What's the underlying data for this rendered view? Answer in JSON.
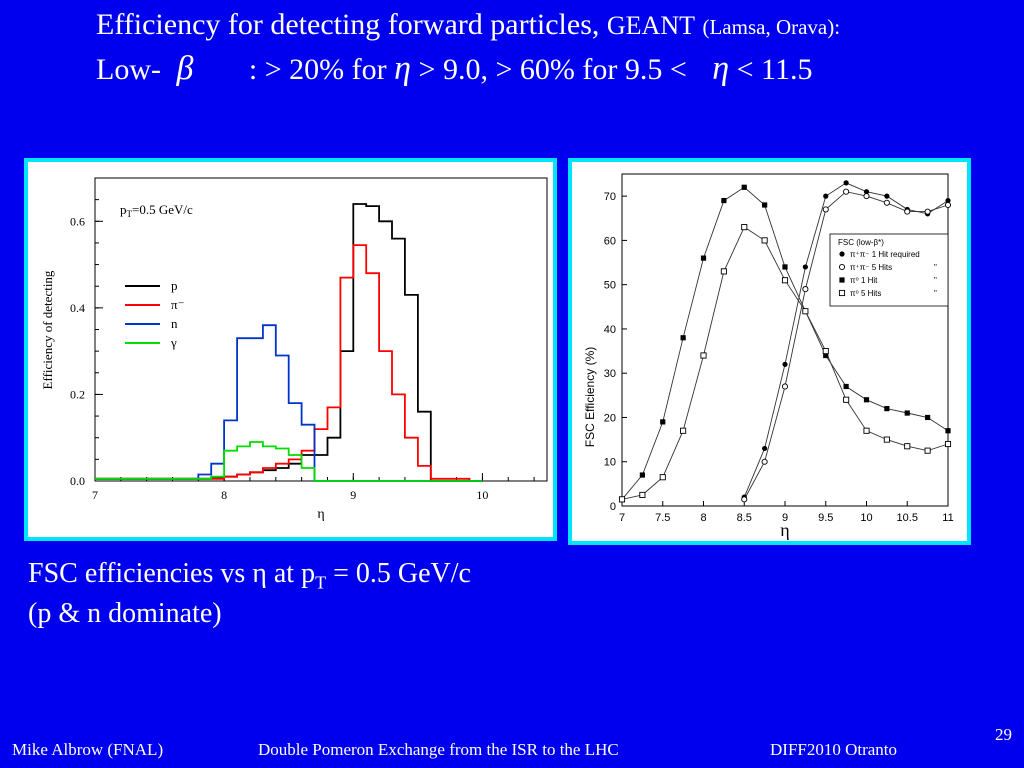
{
  "slide": {
    "title_line1": "Efficiency for detecting forward particles,",
    "title_geant": "GEANT",
    "title_authors": "(Lamsa, Orava):",
    "title_line2_pre": "Low-",
    "beta": "β",
    "title_line2_mid": ": > 20% for",
    "eta": "η",
    "title_line2_mid2": "> 9.0, > 60% for 9.5 <",
    "title_line2_end": "< 11.5",
    "caption_line1_pre": "FSC efficiencies vs η at p",
    "caption_sub": "T",
    "caption_line1_post": " = 0.5 GeV/c",
    "caption_line2": "(p & n dominate)",
    "footer_author": "Mike Albrow (FNAL)",
    "footer_talk": "Double Pomeron Exchange from the ISR to the LHC",
    "footer_conf": "DIFF2010 Otranto",
    "page_number": "29",
    "colors": {
      "background": "#0000ee",
      "panel_border": "#00e5ff"
    }
  },
  "chart_data": [
    {
      "type": "line",
      "step": true,
      "ylabel": "Efficiency of detecting",
      "xlabel": "η",
      "annotation": "p",
      "annotation_sub": "T",
      "annotation_post": "=0.5 GeV/c",
      "xlim": [
        7,
        10.5
      ],
      "ylim": [
        0,
        0.7
      ],
      "x_ticks": [
        7,
        8,
        9,
        10
      ],
      "y_ticks": [
        0.0,
        0.2,
        0.4,
        0.6
      ],
      "x_tick_labels": [
        "7",
        "8",
        "9",
        "10"
      ],
      "y_tick_labels": [
        "0.0",
        "0.2",
        "0.4",
        "0.6"
      ],
      "bin_edges": [
        7.0,
        7.1,
        7.2,
        7.3,
        7.4,
        7.5,
        7.6,
        7.7,
        7.8,
        7.9,
        8.0,
        8.1,
        8.2,
        8.3,
        8.4,
        8.5,
        8.6,
        8.7,
        8.8,
        8.9,
        9.0,
        9.1,
        9.2,
        9.3,
        9.4,
        9.5,
        9.6,
        9.7,
        9.8,
        9.9,
        10.0
      ],
      "series": [
        {
          "name": "p",
          "color": "#000000",
          "values": [
            0.005,
            0.005,
            0.005,
            0.005,
            0.005,
            0.005,
            0.005,
            0.005,
            0.005,
            0.008,
            0.01,
            0.015,
            0.02,
            0.025,
            0.03,
            0.04,
            0.06,
            0.06,
            0.1,
            0.3,
            0.64,
            0.635,
            0.6,
            0.56,
            0.43,
            0.16,
            0.0,
            0.0,
            0.0,
            0.0
          ]
        },
        {
          "name": "π⁻",
          "color": "#ff0000",
          "values": [
            0.005,
            0.005,
            0.005,
            0.005,
            0.005,
            0.005,
            0.005,
            0.005,
            0.005,
            0.005,
            0.01,
            0.015,
            0.02,
            0.03,
            0.04,
            0.05,
            0.07,
            0.12,
            0.17,
            0.47,
            0.545,
            0.48,
            0.3,
            0.2,
            0.1,
            0.035,
            0.005,
            0.005,
            0.005,
            0.0
          ]
        },
        {
          "name": "n",
          "color": "#0033cc",
          "values": [
            0.005,
            0.005,
            0.005,
            0.005,
            0.005,
            0.005,
            0.005,
            0.005,
            0.015,
            0.04,
            0.14,
            0.33,
            0.33,
            0.36,
            0.29,
            0.18,
            0.13,
            0.0,
            0.0,
            0.0,
            0.0,
            0.0,
            0.0,
            0.0,
            0.0,
            0.0,
            0.0,
            0.0,
            0.0,
            0.0
          ]
        },
        {
          "name": "γ",
          "color": "#00dd00",
          "values": [
            0.005,
            0.005,
            0.005,
            0.005,
            0.005,
            0.005,
            0.005,
            0.005,
            0.005,
            0.01,
            0.07,
            0.08,
            0.09,
            0.08,
            0.075,
            0.06,
            0.03,
            0.0,
            0.0,
            0.0,
            0.0,
            0.0,
            0.0,
            0.0,
            0.0,
            0.0,
            0.0,
            0.0,
            0.0,
            0.0
          ]
        }
      ]
    },
    {
      "type": "line",
      "ylabel": "FSC Efficiency  (%)",
      "xlabel": "η",
      "xlim": [
        7,
        11
      ],
      "ylim": [
        0,
        75
      ],
      "x_ticks": [
        7,
        7.5,
        8,
        8.5,
        9,
        9.5,
        10,
        10.5,
        11
      ],
      "y_ticks": [
        0,
        10,
        20,
        30,
        40,
        50,
        60,
        70
      ],
      "x_tick_labels": [
        "7",
        "7.5",
        "8",
        "8.5",
        "9",
        "9.5",
        "10",
        "10.5",
        "11"
      ],
      "y_tick_labels": [
        "0",
        "10",
        "20",
        "30",
        "40",
        "50",
        "60",
        "70"
      ],
      "legend_title": "FSC      (low-β*)",
      "series": [
        {
          "name": "π⁺π⁻   1 Hit required",
          "marker": "filled-circle",
          "x": [
            8.5,
            8.75,
            9.0,
            9.25,
            9.5,
            9.75,
            10.0,
            10.25,
            10.5,
            10.75,
            11.0
          ],
          "y": [
            2,
            13,
            32,
            54,
            70,
            73,
            71,
            70,
            67,
            66,
            69
          ]
        },
        {
          "name": "π⁺π⁻   5 Hits",
          "marker": "open-circle",
          "x": [
            8.5,
            8.75,
            9.0,
            9.25,
            9.5,
            9.75,
            10.0,
            10.25,
            10.5,
            10.75,
            11.0
          ],
          "y": [
            1.5,
            10,
            27,
            49,
            67,
            71,
            70,
            68.5,
            66.5,
            66.5,
            68
          ]
        },
        {
          "name": "π⁰       1 Hit",
          "marker": "filled-square",
          "x": [
            7.0,
            7.25,
            7.5,
            7.75,
            8.0,
            8.25,
            8.5,
            8.75,
            9.0,
            9.25,
            9.5,
            9.75,
            10.0,
            10.25,
            10.5,
            10.75,
            11.0
          ],
          "y": [
            1.5,
            7,
            19,
            38,
            56,
            69,
            72,
            68,
            54,
            44,
            34,
            27,
            24,
            22,
            21,
            20,
            17
          ]
        },
        {
          "name": "π⁰       5 Hits",
          "marker": "open-square",
          "x": [
            7.0,
            7.25,
            7.5,
            7.75,
            8.0,
            8.25,
            8.5,
            8.75,
            9.0,
            9.25,
            9.5,
            9.75,
            10.0,
            10.25,
            10.5,
            10.75,
            11.0
          ],
          "y": [
            1.5,
            2.5,
            6.5,
            17,
            34,
            53,
            63,
            60,
            51,
            44,
            35,
            24,
            17,
            15,
            13.5,
            12.5,
            14
          ]
        }
      ],
      "legend_quote": "\""
    }
  ]
}
